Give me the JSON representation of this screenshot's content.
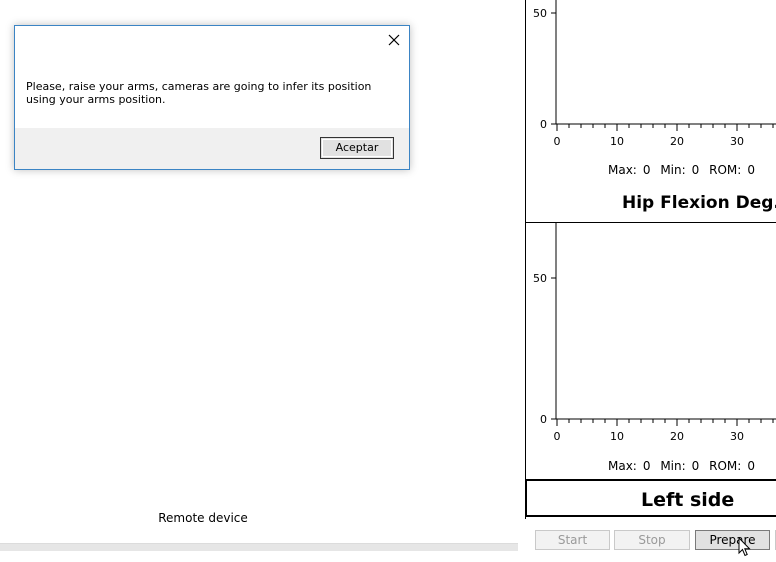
{
  "remote_device": {
    "label": "Remote device"
  },
  "dialog": {
    "message": "Please, raise your arms, cameras are going to infer its position using your arms position.",
    "accept_label": "Aceptar",
    "close_icon": "close-icon"
  },
  "plots": [
    {
      "y_ticks": [
        "50",
        "0"
      ],
      "x_ticks": [
        "0",
        "10",
        "20",
        "30"
      ],
      "stats": {
        "max_label": "Max:",
        "max_value": "0",
        "min_label": "Min:",
        "min_value": "0",
        "rom_label": "ROM:",
        "rom_value": "0"
      },
      "title": "Hip Flexion Deg."
    },
    {
      "y_ticks": [
        "50",
        "0"
      ],
      "x_ticks": [
        "0",
        "10",
        "20",
        "30"
      ],
      "stats": {
        "max_label": "Max:",
        "max_value": "0",
        "min_label": "Min:",
        "min_value": "0",
        "rom_label": "ROM:",
        "rom_value": "0"
      }
    }
  ],
  "side_label": "Left side",
  "buttons": {
    "start": "Start",
    "stop": "Stop",
    "prepare": "Prepare"
  },
  "colors": {
    "dialog_border": "#3b84c4",
    "footer_bg": "#f0f0f0",
    "disabled_text": "#9a9a9a"
  }
}
